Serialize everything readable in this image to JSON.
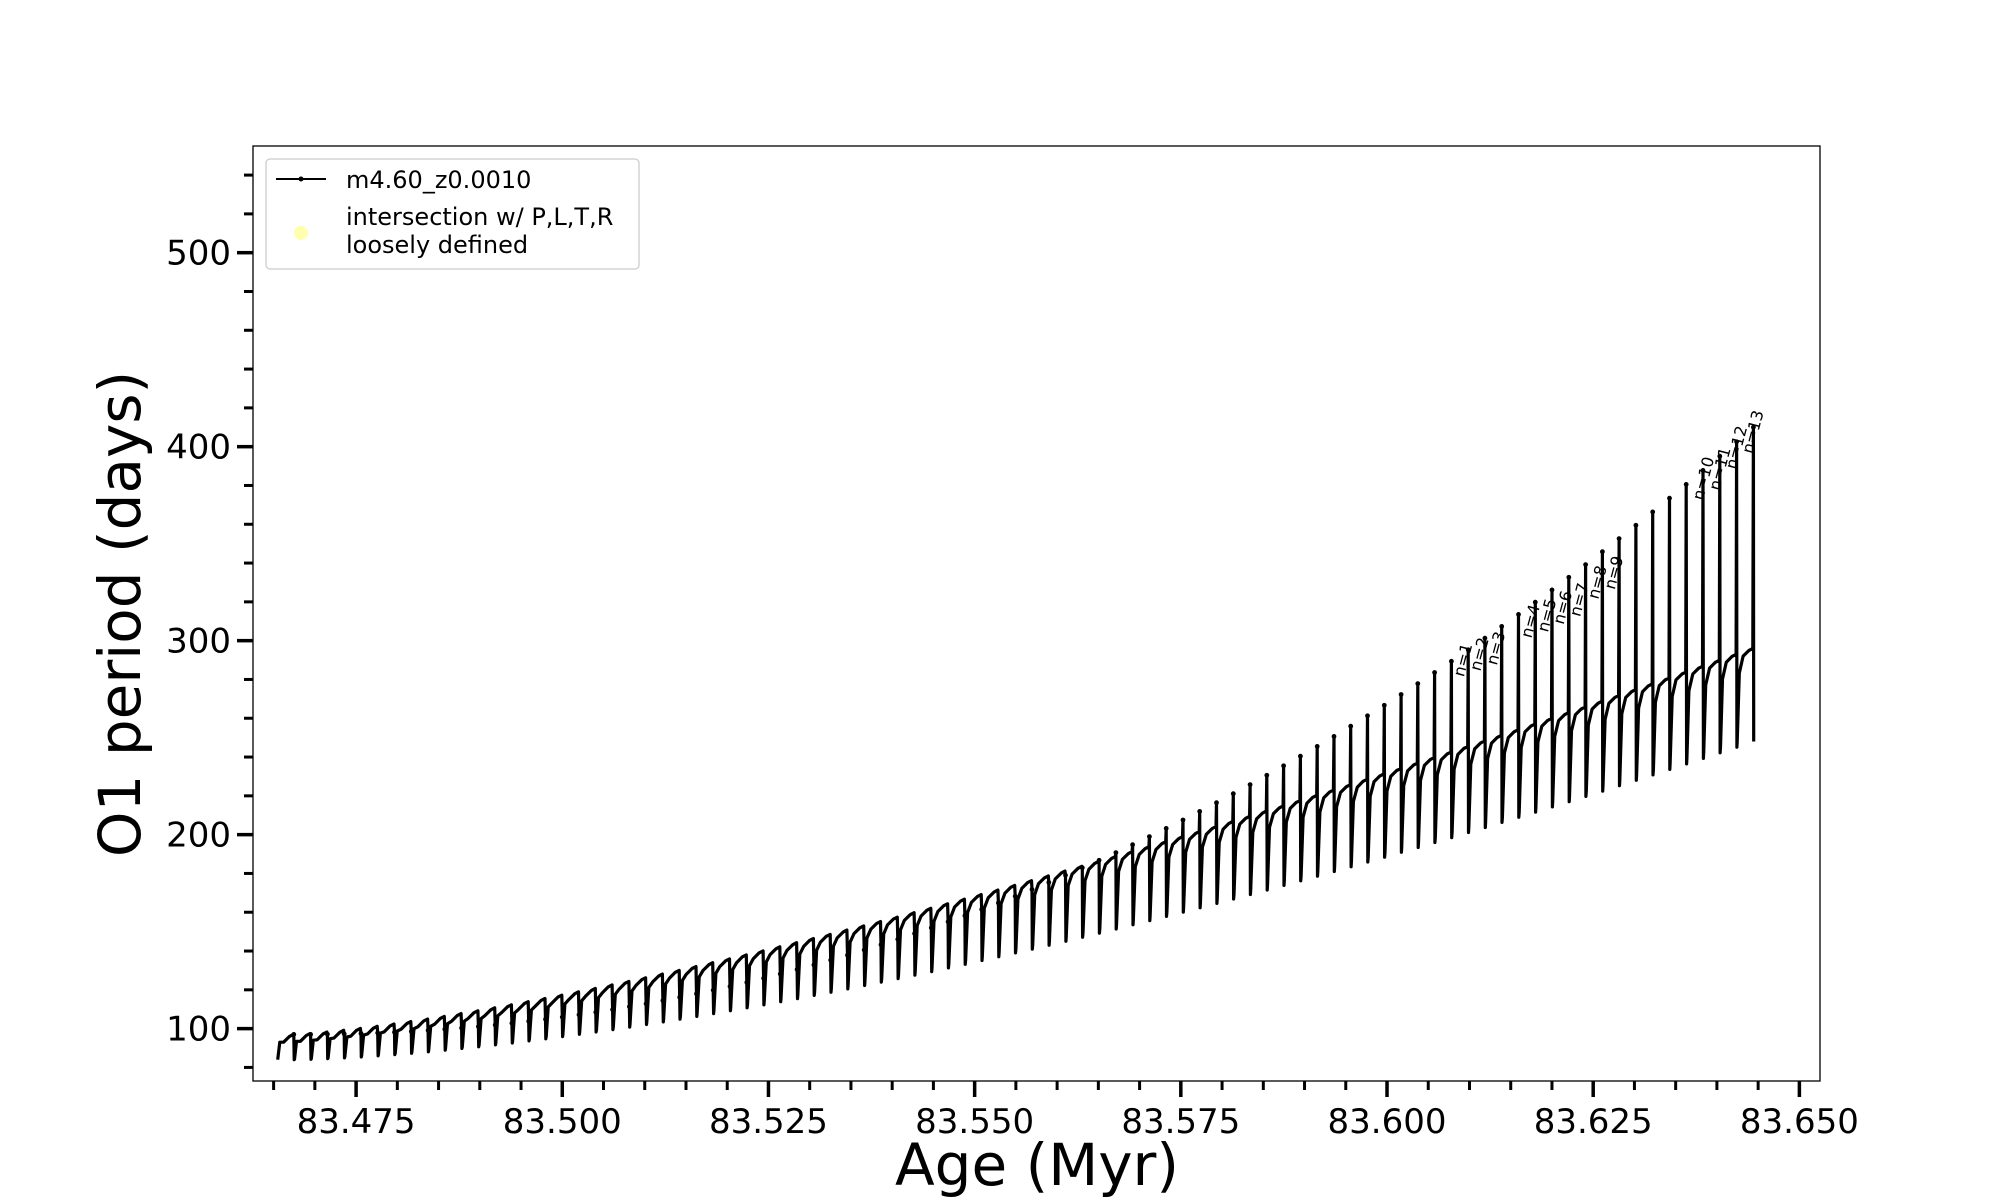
{
  "chart_data": {
    "type": "line",
    "title": "",
    "xlabel": "Age (Myr)",
    "ylabel": "O1 period (days)",
    "xlim": [
      83.4625,
      83.6525
    ],
    "ylim": [
      73,
      555
    ],
    "x_ticks": [
      83.475,
      83.5,
      83.525,
      83.55,
      83.575,
      83.6,
      83.625,
      83.65
    ],
    "x_tick_labels": [
      "83.475",
      "83.500",
      "83.525",
      "83.550",
      "83.575",
      "83.600",
      "83.625",
      "83.650"
    ],
    "y_ticks": [
      100,
      200,
      300,
      400,
      500
    ],
    "y_tick_labels": [
      "100",
      "200",
      "300",
      "400",
      "500"
    ],
    "grid": false,
    "legend": {
      "placement": "top-left",
      "entries": [
        {
          "label": "m4.60_z0.0010",
          "marker": "line-dot",
          "color": "#000000"
        },
        {
          "label_lines": [
            "intersection w/ P,L,T,R",
            "loosely defined"
          ],
          "marker": "circle",
          "color": "#ffffa0"
        }
      ]
    },
    "series": [
      {
        "name": "m4.60_z0.0010",
        "color": "#000000",
        "x_start": 83.4655,
        "x_end": 83.6445,
        "n_cycles": 88,
        "baseline_start": 96,
        "baseline_end": 295,
        "trough_start": 84,
        "trough_end": 248,
        "spike_start": 97,
        "spike_end": 410
      }
    ],
    "annotations": [
      {
        "text": "n=1",
        "x": 83.6093,
        "y": 281
      },
      {
        "text": "n=2",
        "x": 83.6113,
        "y": 284
      },
      {
        "text": "n=3",
        "x": 83.6133,
        "y": 287
      },
      {
        "text": "n=4",
        "x": 83.6175,
        "y": 301
      },
      {
        "text": "n=5",
        "x": 83.6195,
        "y": 304
      },
      {
        "text": "n=6",
        "x": 83.6214,
        "y": 308
      },
      {
        "text": "n=7",
        "x": 83.6234,
        "y": 312
      },
      {
        "text": "n=8",
        "x": 83.6256,
        "y": 321
      },
      {
        "text": "n=9",
        "x": 83.6276,
        "y": 326
      },
      {
        "text": "n=10",
        "x": 83.6383,
        "y": 372
      },
      {
        "text": "n=11",
        "x": 83.6403,
        "y": 377
      },
      {
        "text": "n=12",
        "x": 83.6423,
        "y": 388
      },
      {
        "text": "n=13",
        "x": 83.6443,
        "y": 396
      }
    ]
  }
}
